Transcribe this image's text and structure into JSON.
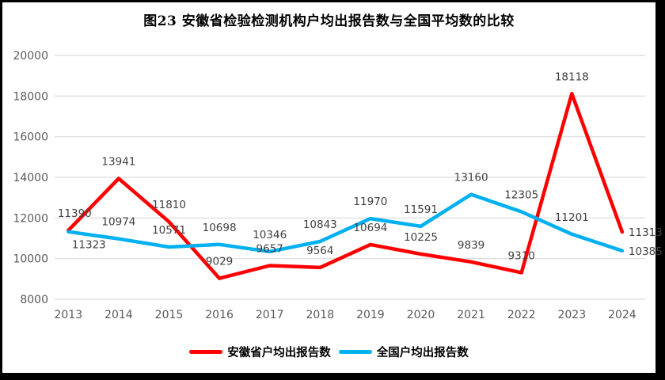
{
  "chart_data": {
    "type": "line",
    "title": "图23 安徽省检验检测机构户均出报告数与全国平均数的比较",
    "categories": [
      "2013",
      "2014",
      "2015",
      "2016",
      "2017",
      "2018",
      "2019",
      "2020",
      "2021",
      "2022",
      "2023",
      "2024"
    ],
    "series": [
      {
        "name": "安徽省户均出报告数",
        "color": "#FF0000",
        "values": [
          11390,
          13941,
          11810,
          9029,
          9657,
          9564,
          10694,
          10225,
          9839,
          9310,
          18118,
          11313
        ]
      },
      {
        "name": "全国户均出报告数",
        "color": "#00B0F0",
        "values": [
          11323,
          10974,
          10571,
          10698,
          10346,
          10843,
          11970,
          11591,
          13160,
          12305,
          11201,
          10385
        ]
      }
    ],
    "ylim": [
      8000,
      20000
    ],
    "y_tick_step": 2000,
    "y_tick_labels": [
      "8000",
      "10000",
      "12000",
      "14000",
      "16000",
      "18000",
      "20000"
    ],
    "grid": true,
    "data_labels": true,
    "legend_position": "bottom",
    "gridline_color": "#D9D9D9",
    "tick_color": "#595959",
    "label_color": "#404040"
  }
}
